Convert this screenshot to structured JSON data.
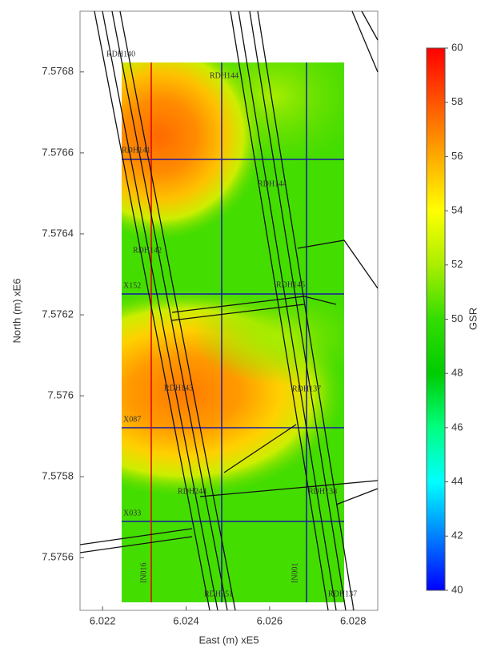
{
  "chart_data": {
    "type": "heatmap",
    "xlabel": "East (m) xE5",
    "ylabel": "North (m) xE6",
    "xlim": [
      6.02146,
      6.02859
    ],
    "ylim": [
      7.57547,
      7.57695
    ],
    "xticks": [
      6.022,
      6.024,
      6.026,
      6.028
    ],
    "yticks": [
      7.5756,
      7.5758,
      7.576,
      7.5762,
      7.5764,
      7.5766,
      7.5768
    ],
    "colorbar": {
      "label": "GSR",
      "lim": [
        40,
        60
      ],
      "ticks": [
        40,
        42,
        44,
        46,
        48,
        50,
        52,
        54,
        56,
        58,
        60
      ],
      "colors": [
        "#0000ff",
        "#0080ff",
        "#00ffff",
        "#00ff80",
        "#00cc00",
        "#33dd00",
        "#aaee00",
        "#ffff00",
        "#ffaa00",
        "#ff5500",
        "#ff0000"
      ]
    },
    "annotations": [
      "RDH140",
      "RDH144",
      "RDH141",
      "RDH144",
      "RDH142",
      "X152",
      "RDH145",
      "RDH143",
      "RDH137",
      "X087",
      "RDH244",
      "RDH138",
      "X033",
      "IN016",
      "RDH251",
      "IN001",
      "RDH137"
    ]
  }
}
